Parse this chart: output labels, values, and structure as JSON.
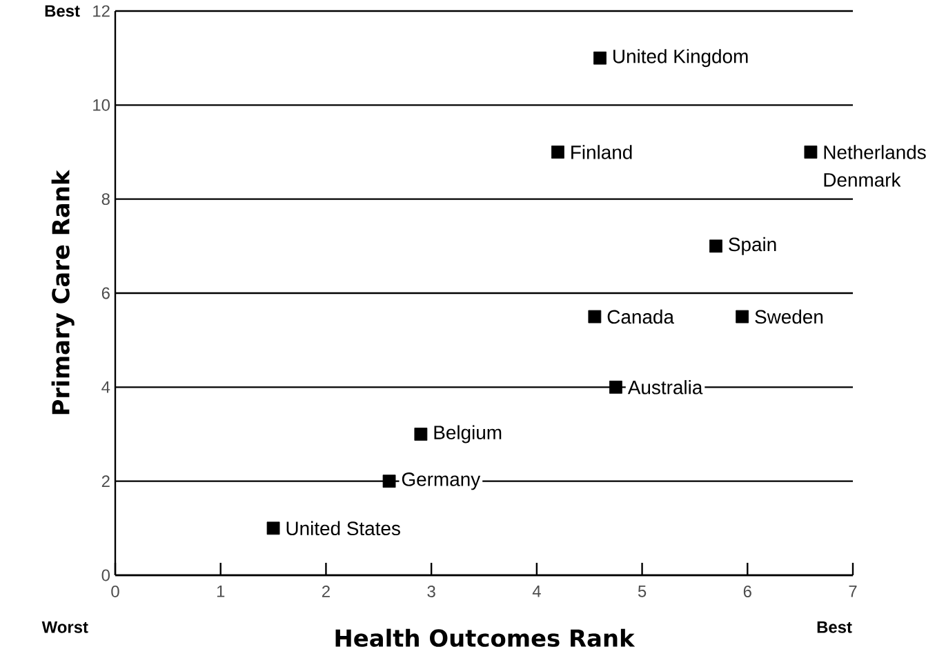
{
  "chart_data": {
    "type": "scatter",
    "xlabel": "Health Outcomes Rank",
    "ylabel": "Primary Care Rank",
    "x": [
      4.6,
      4.2,
      6.6,
      5.7,
      4.55,
      5.95,
      4.75,
      2.9,
      2.6,
      1.5
    ],
    "values": [
      11,
      9,
      9,
      7,
      5.5,
      5.5,
      4,
      3,
      2,
      1
    ],
    "color": "#000000",
    "marker": "square",
    "grid": "y",
    "xlim": [
      0,
      7
    ],
    "ylim": [
      0,
      12
    ],
    "xticks": [
      0,
      1,
      2,
      3,
      4,
      5,
      6,
      7
    ],
    "yticks": [
      0,
      2,
      4,
      6,
      8,
      10,
      12
    ],
    "annotations": [
      {
        "text": "United Kingdom",
        "x": 4.6,
        "y": 11
      },
      {
        "text": "Finland",
        "x": 4.2,
        "y": 9
      },
      {
        "text": "Netherlands",
        "x": 6.6,
        "y": 9
      },
      {
        "text": "Denmark",
        "x": 6.6,
        "y": 9
      },
      {
        "text": "Spain",
        "x": 5.7,
        "y": 7
      },
      {
        "text": "Canada",
        "x": 4.55,
        "y": 5.5
      },
      {
        "text": "Sweden",
        "x": 5.95,
        "y": 5.5
      },
      {
        "text": "Australia",
        "x": 4.75,
        "y": 4
      },
      {
        "text": "Belgium",
        "x": 2.9,
        "y": 3
      },
      {
        "text": "Germany",
        "x": 2.6,
        "y": 2
      },
      {
        "text": "United States",
        "x": 1.5,
        "y": 1
      },
      "Best",
      "Worst",
      "Best"
    ]
  }
}
